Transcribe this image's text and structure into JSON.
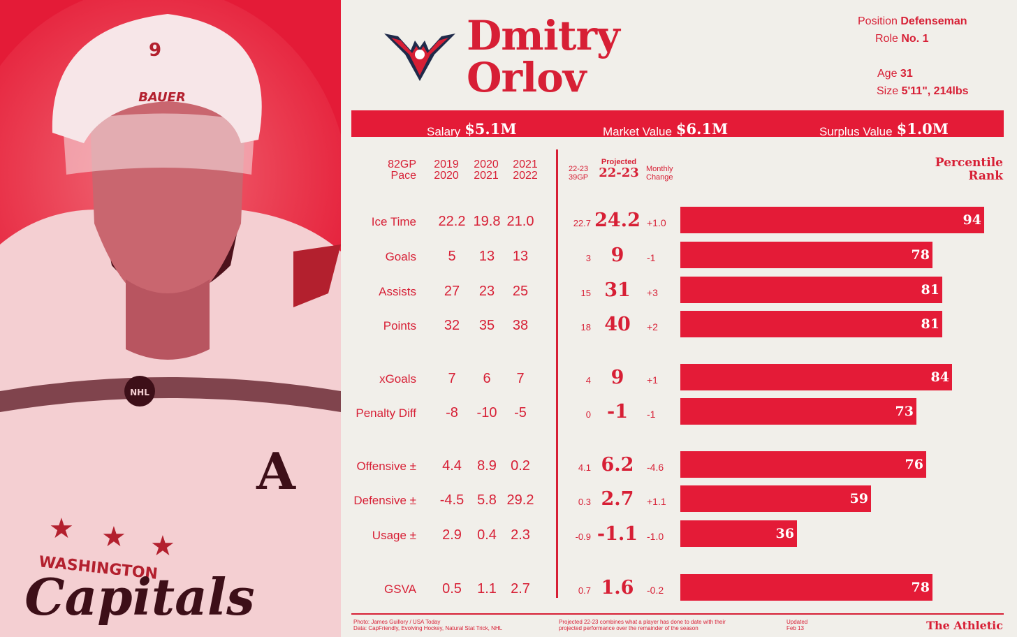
{
  "player": {
    "first_name": "Dmitry",
    "last_name": "Orlov"
  },
  "meta": {
    "position_label": "Position",
    "position_value": "Defenseman",
    "role_label": "Role",
    "role_value": "No. 1",
    "age_label": "Age",
    "age_value": "31",
    "size_label": "Size",
    "size_value": "5'11\", 214lbs"
  },
  "values": {
    "salary_label": "Salary",
    "salary_value": "$5.1M",
    "market_label": "Market Value",
    "market_value": "$6.1M",
    "surplus_label": "Surplus Value",
    "surplus_value": "$1.0M"
  },
  "columns": {
    "pace_1": "82GP",
    "pace_2": "Pace",
    "y1_a": "2019",
    "y1_b": "2020",
    "y2_a": "2020",
    "y2_b": "2021",
    "y3_a": "2021",
    "y3_b": "2022",
    "cur_a": "22-23",
    "cur_b": "39GP",
    "proj_a": "Projected",
    "proj_b": "22-23",
    "monthly_a": "Monthly",
    "monthly_b": "Change",
    "pct_a": "Percentile",
    "pct_b": "Rank"
  },
  "rows": [
    {
      "label": "Ice Time",
      "v1": "22.2",
      "v2": "19.8",
      "v3": "21.0",
      "cur": "22.7",
      "proj": "24.2",
      "chg": "+1.0",
      "pct": 94
    },
    {
      "label": "Goals",
      "v1": "5",
      "v2": "13",
      "v3": "13",
      "cur": "3",
      "proj": "9",
      "chg": "-1",
      "pct": 78
    },
    {
      "label": "Assists",
      "v1": "27",
      "v2": "23",
      "v3": "25",
      "cur": "15",
      "proj": "31",
      "chg": "+3",
      "pct": 81
    },
    {
      "label": "Points",
      "v1": "32",
      "v2": "35",
      "v3": "38",
      "cur": "18",
      "proj": "40",
      "chg": "+2",
      "pct": 81
    },
    {
      "label": "xGoals",
      "v1": "7",
      "v2": "6",
      "v3": "7",
      "cur": "4",
      "proj": "9",
      "chg": "+1",
      "pct": 84
    },
    {
      "label": "Penalty Diff",
      "v1": "-8",
      "v2": "-10",
      "v3": "-5",
      "cur": "0",
      "proj": "-1",
      "chg": "-1",
      "pct": 73
    },
    {
      "label": "Offensive ±",
      "v1": "4.4",
      "v2": "8.9",
      "v3": "0.2",
      "cur": "4.1",
      "proj": "6.2",
      "chg": "-4.6",
      "pct": 76
    },
    {
      "label": "Defensive ±",
      "v1": "-4.5",
      "v2": "5.8",
      "v3": "29.2",
      "cur": "0.3",
      "proj": "2.7",
      "chg": "+1.1",
      "pct": 59
    },
    {
      "label": "Usage ±",
      "v1": "2.9",
      "v2": "0.4",
      "v3": "2.3",
      "cur": "-0.9",
      "proj": "-1.1",
      "chg": "-1.0",
      "pct": 36
    },
    {
      "label": "GSVA",
      "v1": "0.5",
      "v2": "1.1",
      "v3": "2.7",
      "cur": "0.7",
      "proj": "1.6",
      "chg": "-0.2",
      "pct": 78
    }
  ],
  "footer": {
    "credit_1": "Photo: James Guillory / USA Today",
    "credit_2": "Data: CapFriendly, Evolving Hockey, Natural Stat Trick, NHL",
    "note_1": "Projected 22-23 combines what a player has done to date with their",
    "note_2": "projected performance over the remainder of the season",
    "updated_1": "Updated",
    "updated_2": "Feb 13",
    "brand": "The Athletic"
  },
  "photo": {
    "helmet_number": "9",
    "helmet_brand": "BAUER",
    "jersey_letter": "A",
    "jersey_city": "WASHINGTON",
    "jersey_team": "Capitals",
    "badge": "NHL"
  },
  "colors": {
    "accent": "#e41b37",
    "text": "#d71f35",
    "background": "#f1efea",
    "navy": "#1f2a4a"
  }
}
